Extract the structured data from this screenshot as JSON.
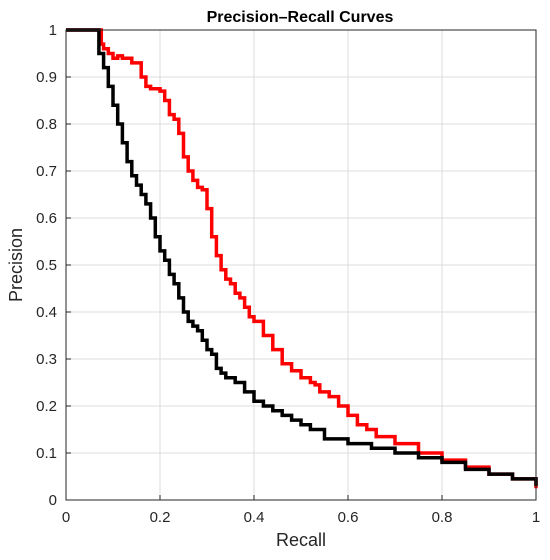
{
  "chart_data": {
    "type": "line",
    "title": "Precision–Recall Curves",
    "xlabel": "Recall",
    "ylabel": "Precision",
    "xlim": [
      0,
      1
    ],
    "ylim": [
      0,
      1
    ],
    "xticks": [
      "0",
      "0.2",
      "0.4",
      "0.6",
      "0.8",
      "1"
    ],
    "yticks": [
      "0",
      "0.1",
      "0.2",
      "0.3",
      "0.4",
      "0.5",
      "0.6",
      "0.7",
      "0.8",
      "0.9",
      "1"
    ],
    "grid": true,
    "series": [
      {
        "color": "#ff0000",
        "x": [
          0,
          0.07,
          0.075,
          0.08,
          0.09,
          0.1,
          0.11,
          0.12,
          0.14,
          0.16,
          0.17,
          0.18,
          0.2,
          0.21,
          0.22,
          0.23,
          0.24,
          0.25,
          0.26,
          0.27,
          0.28,
          0.29,
          0.3,
          0.31,
          0.32,
          0.33,
          0.34,
          0.35,
          0.36,
          0.37,
          0.38,
          0.39,
          0.4,
          0.42,
          0.44,
          0.46,
          0.48,
          0.5,
          0.52,
          0.53,
          0.54,
          0.56,
          0.58,
          0.6,
          0.62,
          0.64,
          0.66,
          0.7,
          0.75,
          0.8,
          0.85,
          0.9,
          0.95,
          1.0
        ],
        "y": [
          1.0,
          1.0,
          0.97,
          0.96,
          0.95,
          0.94,
          0.945,
          0.94,
          0.93,
          0.9,
          0.88,
          0.875,
          0.87,
          0.85,
          0.82,
          0.81,
          0.78,
          0.73,
          0.7,
          0.68,
          0.665,
          0.66,
          0.62,
          0.56,
          0.52,
          0.49,
          0.47,
          0.46,
          0.44,
          0.43,
          0.41,
          0.39,
          0.38,
          0.35,
          0.32,
          0.29,
          0.275,
          0.26,
          0.25,
          0.245,
          0.23,
          0.22,
          0.2,
          0.18,
          0.16,
          0.15,
          0.135,
          0.12,
          0.1,
          0.085,
          0.07,
          0.055,
          0.045,
          0.025
        ]
      },
      {
        "color": "#000000",
        "x": [
          0,
          0.065,
          0.07,
          0.08,
          0.09,
          0.1,
          0.11,
          0.12,
          0.13,
          0.14,
          0.15,
          0.16,
          0.17,
          0.18,
          0.19,
          0.2,
          0.21,
          0.22,
          0.23,
          0.24,
          0.25,
          0.26,
          0.27,
          0.28,
          0.29,
          0.3,
          0.31,
          0.32,
          0.33,
          0.34,
          0.36,
          0.38,
          0.4,
          0.42,
          0.44,
          0.46,
          0.48,
          0.5,
          0.52,
          0.55,
          0.6,
          0.65,
          0.7,
          0.75,
          0.8,
          0.85,
          0.9,
          0.95,
          1.0
        ],
        "y": [
          1.0,
          1.0,
          0.95,
          0.92,
          0.88,
          0.84,
          0.8,
          0.76,
          0.72,
          0.69,
          0.67,
          0.65,
          0.63,
          0.6,
          0.56,
          0.53,
          0.51,
          0.48,
          0.46,
          0.43,
          0.4,
          0.38,
          0.37,
          0.36,
          0.34,
          0.32,
          0.31,
          0.28,
          0.27,
          0.26,
          0.25,
          0.23,
          0.21,
          0.2,
          0.19,
          0.18,
          0.17,
          0.16,
          0.15,
          0.13,
          0.12,
          0.11,
          0.1,
          0.09,
          0.08,
          0.065,
          0.055,
          0.045,
          0.03
        ]
      }
    ]
  }
}
